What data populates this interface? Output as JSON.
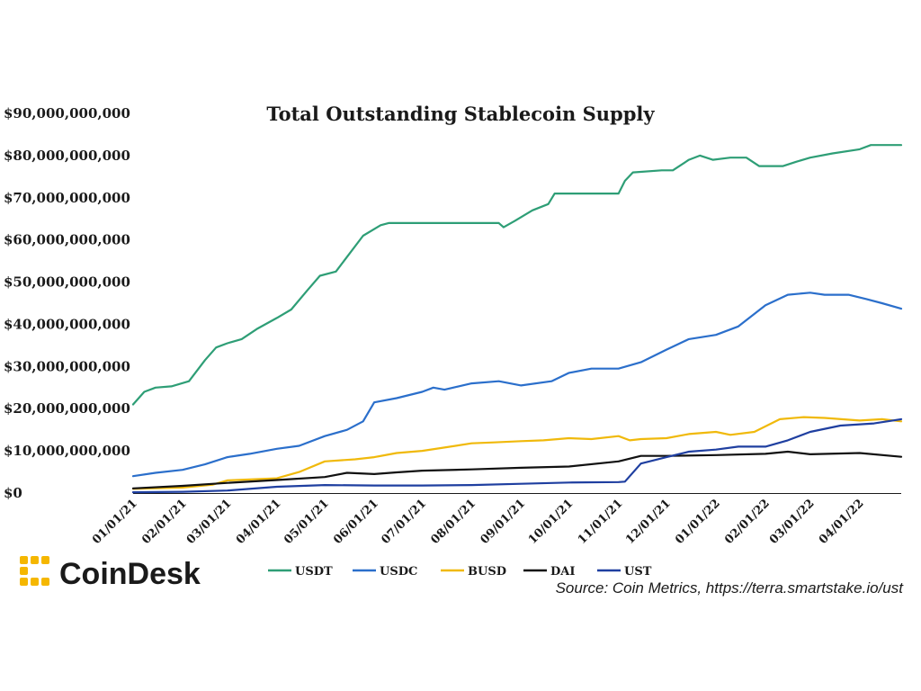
{
  "brand": {
    "name": "CoinDesk",
    "logo_color": "#F5B700"
  },
  "source_note": "Source: Coin Metrics, https://terra.smartstake.io/ust",
  "chart_data": {
    "type": "line",
    "title": "Total Outstanding Stablecoin Supply",
    "xlabel": "",
    "ylabel": "",
    "ylim": [
      0,
      90000000000
    ],
    "yticks": [
      {
        "value": 0,
        "label": "$0"
      },
      {
        "value": 10000000000,
        "label": "$10,000,000,000"
      },
      {
        "value": 20000000000,
        "label": "$20,000,000,000"
      },
      {
        "value": 30000000000,
        "label": "$30,000,000,000"
      },
      {
        "value": 40000000000,
        "label": "$40,000,000,000"
      },
      {
        "value": 50000000000,
        "label": "$50,000,000,000"
      },
      {
        "value": 60000000000,
        "label": "$60,000,000,000"
      },
      {
        "value": 70000000000,
        "label": "$70,000,000,000"
      },
      {
        "value": 80000000000,
        "label": "$80,000,000,000"
      },
      {
        "value": 90000000000,
        "label": "$90,000,000,000"
      }
    ],
    "xlim": [
      "2021-01-01",
      "2022-04-27"
    ],
    "xticks": [
      {
        "date": "2021-01-01",
        "label": "01/01/21"
      },
      {
        "date": "2021-02-01",
        "label": "02/01/21"
      },
      {
        "date": "2021-03-01",
        "label": "03/01/21"
      },
      {
        "date": "2021-04-01",
        "label": "04/01/21"
      },
      {
        "date": "2021-05-01",
        "label": "05/01/21"
      },
      {
        "date": "2021-06-01",
        "label": "06/01/21"
      },
      {
        "date": "2021-07-01",
        "label": "07/01/21"
      },
      {
        "date": "2021-08-01",
        "label": "08/01/21"
      },
      {
        "date": "2021-09-01",
        "label": "09/01/21"
      },
      {
        "date": "2021-10-01",
        "label": "10/01/21"
      },
      {
        "date": "2021-11-01",
        "label": "11/01/21"
      },
      {
        "date": "2021-12-01",
        "label": "12/01/21"
      },
      {
        "date": "2022-01-01",
        "label": "01/01/22"
      },
      {
        "date": "2022-02-01",
        "label": "02/01/22"
      },
      {
        "date": "2022-03-01",
        "label": "03/01/22"
      },
      {
        "date": "2022-04-01",
        "label": "04/01/22"
      }
    ],
    "grid": false,
    "legend_position": "bottom",
    "series": [
      {
        "name": "USDT",
        "color": "#2E9E76",
        "points": [
          [
            "2021-01-01",
            21.0
          ],
          [
            "2021-01-08",
            24.0
          ],
          [
            "2021-01-15",
            25.0
          ],
          [
            "2021-01-25",
            25.3
          ],
          [
            "2021-02-05",
            26.5
          ],
          [
            "2021-02-15",
            31.5
          ],
          [
            "2021-02-22",
            34.5
          ],
          [
            "2021-03-01",
            35.5
          ],
          [
            "2021-03-10",
            36.5
          ],
          [
            "2021-03-20",
            39.0
          ],
          [
            "2021-04-01",
            41.5
          ],
          [
            "2021-04-10",
            43.5
          ],
          [
            "2021-04-20",
            48.0
          ],
          [
            "2021-04-28",
            51.5
          ],
          [
            "2021-05-08",
            52.5
          ],
          [
            "2021-05-15",
            56.0
          ],
          [
            "2021-05-25",
            61.0
          ],
          [
            "2021-06-05",
            63.5
          ],
          [
            "2021-06-10",
            64.0
          ],
          [
            "2021-07-01",
            64.0
          ],
          [
            "2021-08-01",
            64.0
          ],
          [
            "2021-08-18",
            64.0
          ],
          [
            "2021-08-21",
            63.0
          ],
          [
            "2021-08-28",
            64.5
          ],
          [
            "2021-09-08",
            67.0
          ],
          [
            "2021-09-18",
            68.5
          ],
          [
            "2021-09-22",
            71.0
          ],
          [
            "2021-10-10",
            71.0
          ],
          [
            "2021-10-25",
            71.0
          ],
          [
            "2021-11-01",
            71.0
          ],
          [
            "2021-11-05",
            74.0
          ],
          [
            "2021-11-10",
            76.0
          ],
          [
            "2021-11-28",
            76.5
          ],
          [
            "2021-12-05",
            76.5
          ],
          [
            "2021-12-15",
            79.0
          ],
          [
            "2021-12-22",
            80.0
          ],
          [
            "2021-12-30",
            79.0
          ],
          [
            "2022-01-10",
            79.5
          ],
          [
            "2022-01-20",
            79.5
          ],
          [
            "2022-01-28",
            77.5
          ],
          [
            "2022-02-12",
            77.5
          ],
          [
            "2022-02-20",
            78.5
          ],
          [
            "2022-03-01",
            79.5
          ],
          [
            "2022-03-15",
            80.5
          ],
          [
            "2022-04-01",
            81.5
          ],
          [
            "2022-04-08",
            82.5
          ],
          [
            "2022-04-27",
            82.5
          ]
        ]
      },
      {
        "name": "USDC",
        "color": "#2B6FCB",
        "points": [
          [
            "2021-01-01",
            4.0
          ],
          [
            "2021-01-15",
            4.8
          ],
          [
            "2021-02-01",
            5.5
          ],
          [
            "2021-02-15",
            6.8
          ],
          [
            "2021-03-01",
            8.5
          ],
          [
            "2021-03-15",
            9.3
          ],
          [
            "2021-04-01",
            10.5
          ],
          [
            "2021-04-15",
            11.2
          ],
          [
            "2021-05-01",
            13.5
          ],
          [
            "2021-05-15",
            15.0
          ],
          [
            "2021-05-25",
            17.0
          ],
          [
            "2021-06-01",
            21.5
          ],
          [
            "2021-06-15",
            22.5
          ],
          [
            "2021-07-01",
            24.0
          ],
          [
            "2021-07-08",
            25.0
          ],
          [
            "2021-07-15",
            24.5
          ],
          [
            "2021-08-01",
            26.0
          ],
          [
            "2021-08-18",
            26.5
          ],
          [
            "2021-09-01",
            25.5
          ],
          [
            "2021-09-20",
            26.5
          ],
          [
            "2021-10-01",
            28.5
          ],
          [
            "2021-10-15",
            29.5
          ],
          [
            "2021-11-01",
            29.5
          ],
          [
            "2021-11-15",
            31.0
          ],
          [
            "2021-12-01",
            34.0
          ],
          [
            "2021-12-15",
            36.5
          ],
          [
            "2022-01-01",
            37.5
          ],
          [
            "2022-01-15",
            39.5
          ],
          [
            "2022-02-01",
            44.5
          ],
          [
            "2022-02-15",
            47.0
          ],
          [
            "2022-03-01",
            47.5
          ],
          [
            "2022-03-10",
            47.0
          ],
          [
            "2022-03-25",
            47.0
          ],
          [
            "2022-04-05",
            46.0
          ],
          [
            "2022-04-15",
            45.0
          ],
          [
            "2022-04-27",
            43.7
          ]
        ]
      },
      {
        "name": "BUSD",
        "color": "#F0B90B",
        "points": [
          [
            "2021-01-01",
            1.0
          ],
          [
            "2021-02-01",
            1.3
          ],
          [
            "2021-02-20",
            2.0
          ],
          [
            "2021-03-01",
            3.0
          ],
          [
            "2021-04-01",
            3.5
          ],
          [
            "2021-04-15",
            5.0
          ],
          [
            "2021-05-01",
            7.5
          ],
          [
            "2021-05-20",
            8.0
          ],
          [
            "2021-06-01",
            8.5
          ],
          [
            "2021-06-15",
            9.5
          ],
          [
            "2021-07-01",
            10.0
          ],
          [
            "2021-07-15",
            10.8
          ],
          [
            "2021-08-01",
            11.8
          ],
          [
            "2021-08-15",
            12.0
          ],
          [
            "2021-09-01",
            12.3
          ],
          [
            "2021-09-15",
            12.5
          ],
          [
            "2021-10-01",
            13.0
          ],
          [
            "2021-10-15",
            12.8
          ],
          [
            "2021-11-01",
            13.5
          ],
          [
            "2021-11-08",
            12.5
          ],
          [
            "2021-11-15",
            12.8
          ],
          [
            "2021-12-01",
            13.0
          ],
          [
            "2021-12-15",
            14.0
          ],
          [
            "2022-01-01",
            14.5
          ],
          [
            "2022-01-10",
            13.8
          ],
          [
            "2022-01-25",
            14.5
          ],
          [
            "2022-02-10",
            17.5
          ],
          [
            "2022-02-25",
            18.0
          ],
          [
            "2022-03-10",
            17.8
          ],
          [
            "2022-04-01",
            17.2
          ],
          [
            "2022-04-15",
            17.5
          ],
          [
            "2022-04-27",
            17.0
          ]
        ]
      },
      {
        "name": "DAI",
        "color": "#111111",
        "points": [
          [
            "2021-01-01",
            1.1
          ],
          [
            "2021-02-01",
            1.7
          ],
          [
            "2021-03-01",
            2.4
          ],
          [
            "2021-04-01",
            3.1
          ],
          [
            "2021-05-01",
            3.8
          ],
          [
            "2021-05-15",
            4.8
          ],
          [
            "2021-06-01",
            4.5
          ],
          [
            "2021-06-15",
            4.9
          ],
          [
            "2021-07-01",
            5.3
          ],
          [
            "2021-08-01",
            5.6
          ],
          [
            "2021-09-01",
            6.0
          ],
          [
            "2021-10-01",
            6.3
          ],
          [
            "2021-11-01",
            7.5
          ],
          [
            "2021-11-15",
            8.8
          ],
          [
            "2021-12-01",
            8.8
          ],
          [
            "2022-01-01",
            9.0
          ],
          [
            "2022-02-01",
            9.3
          ],
          [
            "2022-02-15",
            9.8
          ],
          [
            "2022-03-01",
            9.2
          ],
          [
            "2022-04-01",
            9.5
          ],
          [
            "2022-04-27",
            8.6
          ]
        ]
      },
      {
        "name": "UST",
        "color": "#1F3FA0",
        "points": [
          [
            "2021-01-01",
            0.2
          ],
          [
            "2021-02-01",
            0.3
          ],
          [
            "2021-03-01",
            0.6
          ],
          [
            "2021-04-01",
            1.5
          ],
          [
            "2021-05-01",
            1.9
          ],
          [
            "2021-06-01",
            1.8
          ],
          [
            "2021-07-01",
            1.8
          ],
          [
            "2021-08-01",
            1.9
          ],
          [
            "2021-09-01",
            2.2
          ],
          [
            "2021-10-01",
            2.5
          ],
          [
            "2021-11-01",
            2.6
          ],
          [
            "2021-11-05",
            2.7
          ],
          [
            "2021-11-15",
            7.0
          ],
          [
            "2021-12-01",
            8.5
          ],
          [
            "2021-12-15",
            9.8
          ],
          [
            "2022-01-01",
            10.3
          ],
          [
            "2022-01-15",
            11.0
          ],
          [
            "2022-02-01",
            11.0
          ],
          [
            "2022-02-15",
            12.5
          ],
          [
            "2022-03-01",
            14.5
          ],
          [
            "2022-03-20",
            16.0
          ],
          [
            "2022-04-10",
            16.5
          ],
          [
            "2022-04-27",
            17.5
          ]
        ]
      }
    ]
  }
}
